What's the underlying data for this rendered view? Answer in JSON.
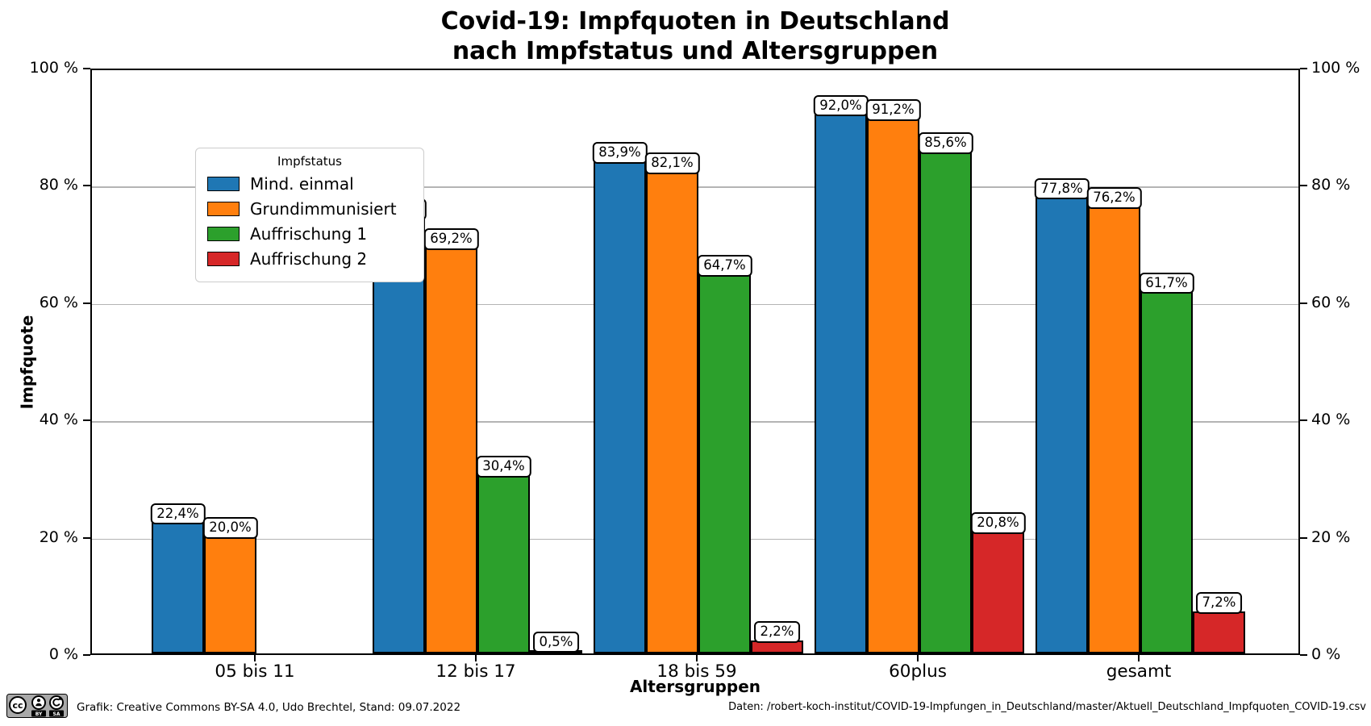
{
  "title_lines": [
    "Covid-19: Impfquoten in Deutschland",
    "nach Impfstatus und Altersgruppen"
  ],
  "chart_data": {
    "type": "bar",
    "title": "Covid-19: Impfquoten in Deutschland nach Impfstatus und Altersgruppen",
    "xlabel": "Altersgruppen",
    "ylabel": "Impfquote",
    "legend_title": "Impfstatus",
    "legend_position": "upper left",
    "grid": true,
    "ylim": [
      0,
      100
    ],
    "yticks": [
      0,
      20,
      40,
      60,
      80,
      100
    ],
    "ytick_labels": [
      "0 %",
      "20 %",
      "40 %",
      "60 %",
      "80 %",
      "100 %"
    ],
    "axis_labels_both_sides": true,
    "categories": [
      "05 bis 11",
      "12 bis 17",
      "18 bis 59",
      "60plus",
      "gesamt"
    ],
    "series": [
      {
        "name": "Mind. einmal",
        "color": "#1f77b4",
        "values": [
          22.4,
          74.3,
          83.9,
          92.0,
          77.8
        ],
        "labels": [
          "22,4%",
          "74,3%",
          "83,9%",
          "92,0%",
          "77,8%"
        ]
      },
      {
        "name": "Grundimmunisiert",
        "color": "#ff7f0e",
        "values": [
          20.0,
          69.2,
          82.1,
          91.2,
          76.2
        ],
        "labels": [
          "20,0%",
          "69,2%",
          "82,1%",
          "91,2%",
          "76,2%"
        ]
      },
      {
        "name": "Auffrischung 1",
        "color": "#2ca02c",
        "values": [
          null,
          30.4,
          64.7,
          85.6,
          61.7
        ],
        "labels": [
          null,
          "30,4%",
          "64,7%",
          "85,6%",
          "61,7%"
        ]
      },
      {
        "name": "Auffrischung 2",
        "color": "#d62728",
        "values": [
          null,
          0.5,
          2.2,
          20.8,
          7.2
        ],
        "labels": [
          null,
          "0,5%",
          "2,2%",
          "20,8%",
          "7,2%"
        ]
      }
    ]
  },
  "footer": {
    "license_badge": "CC BY-SA",
    "left": "Grafik: Creative Commons BY-SA 4.0, Udo Brechtel, Stand: 09.07.2022",
    "right": "Daten: /robert-koch-institut/COVID-19-Impfungen_in_Deutschland/master/Aktuell_Deutschland_Impfquoten_COVID-19.csv"
  },
  "colors": {
    "grid": "#b4b4b4",
    "bar_edge": "#000000",
    "background": "#ffffff"
  }
}
